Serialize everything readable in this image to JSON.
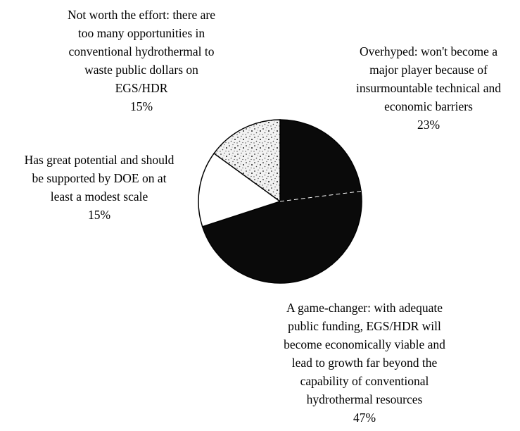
{
  "chart_data": {
    "type": "pie",
    "title": "",
    "start_angle_deg": 0,
    "direction": "clockwise",
    "slices": [
      {
        "label": "Overhyped: won't become a\nmajor player because of\ninsurmountable technical and\neconomic barriers",
        "value": 23,
        "value_label": "23%",
        "color": "#0a0a0a",
        "pattern": "solid"
      },
      {
        "label": "A game-changer: with adequate\npublic funding, EGS/HDR will\nbecome economically viable and\nlead to growth far beyond the\ncapability of conventional\nhydrothermal resources",
        "value": 47,
        "value_label": "47%",
        "color": "#0a0a0a",
        "pattern": "solid"
      },
      {
        "label": "Has great potential and should\nbe supported by DOE on at\nleast a modest scale",
        "value": 15,
        "value_label": "15%",
        "color": "#ffffff",
        "pattern": "solid"
      },
      {
        "label": "Not worth the effort: there are\ntoo many opportunities in\nconventional hydrothermal to\nwaste public dollars on\nEGS/HDR",
        "value": 15,
        "value_label": "15%",
        "color": "#ffffff",
        "pattern": "speckled"
      }
    ]
  }
}
